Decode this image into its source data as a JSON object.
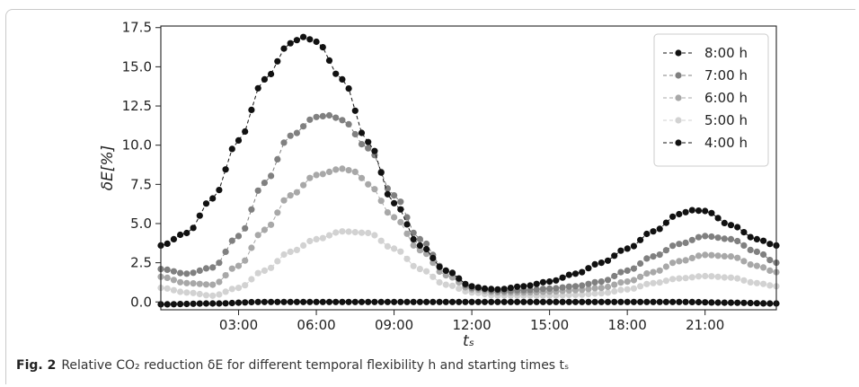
{
  "caption": {
    "label": "Fig. 2",
    "text": "Relative CO₂ reduction δE for different temporal flexibility h and starting times tₛ"
  },
  "chart_data": {
    "type": "line",
    "xlabel": "tₛ",
    "ylabel": "δE[%]",
    "x_axis": {
      "min_hours": 0,
      "max_hours": 23.75,
      "ticks": [
        {
          "hours": 3,
          "label": "03:00"
        },
        {
          "hours": 6,
          "label": "06:00"
        },
        {
          "hours": 9,
          "label": "09:00"
        },
        {
          "hours": 12,
          "label": "12:00"
        },
        {
          "hours": 15,
          "label": "15:00"
        },
        {
          "hours": 18,
          "label": "18:00"
        },
        {
          "hours": 21,
          "label": "21:00"
        }
      ],
      "sample_step_hours": 0.25
    },
    "y_axis": {
      "ylim": [
        -0.5,
        17.6
      ],
      "ticks": [
        0.0,
        2.5,
        5.0,
        7.5,
        10.0,
        12.5,
        15.0,
        17.5
      ],
      "tick_labels": [
        "0.0",
        "2.5",
        "5.0",
        "7.5",
        "10.0",
        "12.5",
        "15.0",
        "17.5"
      ]
    },
    "legend_position": "top-right",
    "marker": "circle",
    "linestyle": "dashed",
    "series": [
      {
        "name": "8:00 h",
        "color": "#111111",
        "keypoints": [
          [
            0,
            3.6
          ],
          [
            1,
            4.4
          ],
          [
            2,
            6.6
          ],
          [
            3,
            10.3
          ],
          [
            4,
            14.2
          ],
          [
            5,
            16.5
          ],
          [
            5.5,
            16.9
          ],
          [
            6,
            16.6
          ],
          [
            7,
            14.2
          ],
          [
            8,
            10.2
          ],
          [
            9,
            6.3
          ],
          [
            10,
            3.6
          ],
          [
            11,
            2.0
          ],
          [
            12,
            1.0
          ],
          [
            12.5,
            0.85
          ],
          [
            13,
            0.8
          ],
          [
            14,
            1.0
          ],
          [
            15,
            1.3
          ],
          [
            16,
            1.8
          ],
          [
            17,
            2.5
          ],
          [
            18,
            3.4
          ],
          [
            19,
            4.5
          ],
          [
            20,
            5.6
          ],
          [
            20.5,
            5.85
          ],
          [
            21,
            5.8
          ],
          [
            22,
            4.9
          ],
          [
            23,
            4.0
          ],
          [
            23.75,
            3.6
          ]
        ]
      },
      {
        "name": "7:00 h",
        "color": "#808080",
        "keypoints": [
          [
            0,
            2.1
          ],
          [
            1,
            1.8
          ],
          [
            2,
            2.2
          ],
          [
            3,
            4.2
          ],
          [
            4,
            7.6
          ],
          [
            5,
            10.6
          ],
          [
            6,
            11.8
          ],
          [
            6.5,
            11.9
          ],
          [
            7,
            11.6
          ],
          [
            8,
            9.8
          ],
          [
            9,
            6.8
          ],
          [
            10,
            4.0
          ],
          [
            11,
            2.0
          ],
          [
            12,
            0.9
          ],
          [
            13,
            0.7
          ],
          [
            14,
            0.75
          ],
          [
            15,
            0.85
          ],
          [
            16,
            1.0
          ],
          [
            17,
            1.3
          ],
          [
            18,
            2.0
          ],
          [
            19,
            2.9
          ],
          [
            20,
            3.7
          ],
          [
            21,
            4.2
          ],
          [
            22,
            4.0
          ],
          [
            23,
            3.2
          ],
          [
            23.75,
            2.5
          ]
        ]
      },
      {
        "name": "6:00 h",
        "color": "#a8a8a8",
        "keypoints": [
          [
            0,
            1.6
          ],
          [
            1,
            1.2
          ],
          [
            2,
            1.1
          ],
          [
            3,
            2.3
          ],
          [
            4,
            4.6
          ],
          [
            5,
            6.8
          ],
          [
            6,
            8.1
          ],
          [
            7,
            8.5
          ],
          [
            7.5,
            8.3
          ],
          [
            8,
            7.5
          ],
          [
            9,
            5.4
          ],
          [
            10,
            3.3
          ],
          [
            11,
            1.7
          ],
          [
            12,
            0.8
          ],
          [
            13,
            0.6
          ],
          [
            14,
            0.6
          ],
          [
            15,
            0.65
          ],
          [
            16,
            0.75
          ],
          [
            17,
            0.9
          ],
          [
            18,
            1.3
          ],
          [
            19,
            1.9
          ],
          [
            20,
            2.6
          ],
          [
            21,
            3.0
          ],
          [
            22,
            2.9
          ],
          [
            23,
            2.3
          ],
          [
            23.75,
            1.9
          ]
        ]
      },
      {
        "name": "5:00 h",
        "color": "#d2d2d2",
        "keypoints": [
          [
            0,
            0.9
          ],
          [
            1,
            0.6
          ],
          [
            2,
            0.4
          ],
          [
            3,
            0.9
          ],
          [
            4,
            2.0
          ],
          [
            5,
            3.2
          ],
          [
            6,
            4.0
          ],
          [
            7,
            4.5
          ],
          [
            8,
            4.4
          ],
          [
            9,
            3.4
          ],
          [
            10,
            2.1
          ],
          [
            11,
            1.1
          ],
          [
            12,
            0.6
          ],
          [
            13,
            0.4
          ],
          [
            14,
            0.4
          ],
          [
            15,
            0.4
          ],
          [
            16,
            0.45
          ],
          [
            17,
            0.55
          ],
          [
            18,
            0.8
          ],
          [
            19,
            1.2
          ],
          [
            20,
            1.5
          ],
          [
            21,
            1.65
          ],
          [
            22,
            1.55
          ],
          [
            23,
            1.2
          ],
          [
            23.75,
            1.0
          ]
        ]
      },
      {
        "name": "4:00 h",
        "color": "#111111",
        "keypoints": [
          [
            0,
            -0.15
          ],
          [
            2,
            -0.1
          ],
          [
            4,
            0.0
          ],
          [
            12,
            0.0
          ],
          [
            20,
            0.0
          ],
          [
            22,
            -0.05
          ],
          [
            23.75,
            -0.1
          ]
        ]
      }
    ]
  }
}
